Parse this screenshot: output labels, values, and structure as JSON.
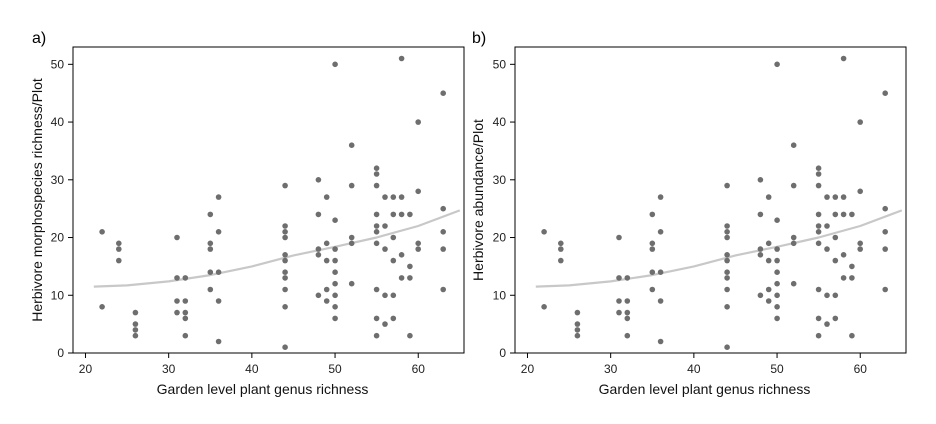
{
  "chart_data": [
    {
      "type": "scatter",
      "panel_label": "a)",
      "xlabel": "Garden level plant genus richness",
      "ylabel": "Herbivore morphospecies richness/Plot",
      "xlim": [
        18.5,
        65.5
      ],
      "ylim": [
        0,
        53
      ],
      "xticks": [
        20,
        30,
        40,
        50,
        60
      ],
      "yticks": [
        0,
        10,
        20,
        30,
        40,
        50
      ],
      "point_color": "#6e6e6e",
      "fit_color": "#c8c8c8",
      "fit_curve": {
        "x": [
          21,
          25,
          30,
          35,
          40,
          45,
          50,
          55,
          60,
          65
        ],
        "y": [
          11.5,
          11.7,
          12.4,
          13.5,
          15.0,
          16.9,
          18.4,
          20.0,
          22.0,
          24.7
        ]
      },
      "points": [
        {
          "x": 22,
          "y": 21
        },
        {
          "x": 22,
          "y": 8
        },
        {
          "x": 24,
          "y": 19
        },
        {
          "x": 24,
          "y": 18
        },
        {
          "x": 24,
          "y": 16
        },
        {
          "x": 26,
          "y": 7
        },
        {
          "x": 26,
          "y": 5
        },
        {
          "x": 26,
          "y": 4
        },
        {
          "x": 26,
          "y": 3
        },
        {
          "x": 31,
          "y": 20
        },
        {
          "x": 31,
          "y": 13
        },
        {
          "x": 31,
          "y": 9
        },
        {
          "x": 31,
          "y": 7
        },
        {
          "x": 32,
          "y": 13
        },
        {
          "x": 32,
          "y": 9
        },
        {
          "x": 32,
          "y": 7
        },
        {
          "x": 32,
          "y": 6
        },
        {
          "x": 32,
          "y": 3
        },
        {
          "x": 35,
          "y": 24
        },
        {
          "x": 35,
          "y": 19
        },
        {
          "x": 35,
          "y": 18
        },
        {
          "x": 35,
          "y": 14
        },
        {
          "x": 35,
          "y": 11
        },
        {
          "x": 36,
          "y": 27
        },
        {
          "x": 36,
          "y": 21
        },
        {
          "x": 36,
          "y": 14
        },
        {
          "x": 36,
          "y": 9
        },
        {
          "x": 36,
          "y": 2
        },
        {
          "x": 44,
          "y": 29
        },
        {
          "x": 44,
          "y": 22
        },
        {
          "x": 44,
          "y": 21
        },
        {
          "x": 44,
          "y": 20
        },
        {
          "x": 44,
          "y": 17
        },
        {
          "x": 44,
          "y": 16
        },
        {
          "x": 44,
          "y": 14
        },
        {
          "x": 44,
          "y": 13
        },
        {
          "x": 44,
          "y": 11
        },
        {
          "x": 44,
          "y": 8
        },
        {
          "x": 44,
          "y": 1
        },
        {
          "x": 48,
          "y": 30
        },
        {
          "x": 48,
          "y": 24
        },
        {
          "x": 48,
          "y": 18
        },
        {
          "x": 48,
          "y": 17
        },
        {
          "x": 48,
          "y": 10
        },
        {
          "x": 49,
          "y": 27
        },
        {
          "x": 49,
          "y": 19
        },
        {
          "x": 49,
          "y": 16
        },
        {
          "x": 49,
          "y": 11
        },
        {
          "x": 49,
          "y": 9
        },
        {
          "x": 50,
          "y": 50
        },
        {
          "x": 50,
          "y": 23
        },
        {
          "x": 50,
          "y": 18
        },
        {
          "x": 50,
          "y": 16
        },
        {
          "x": 50,
          "y": 14
        },
        {
          "x": 50,
          "y": 12
        },
        {
          "x": 50,
          "y": 10
        },
        {
          "x": 50,
          "y": 8
        },
        {
          "x": 50,
          "y": 6
        },
        {
          "x": 52,
          "y": 36
        },
        {
          "x": 52,
          "y": 29
        },
        {
          "x": 52,
          "y": 20
        },
        {
          "x": 52,
          "y": 19
        },
        {
          "x": 52,
          "y": 12
        },
        {
          "x": 55,
          "y": 32
        },
        {
          "x": 55,
          "y": 31
        },
        {
          "x": 55,
          "y": 29
        },
        {
          "x": 55,
          "y": 24
        },
        {
          "x": 55,
          "y": 22
        },
        {
          "x": 55,
          "y": 21
        },
        {
          "x": 55,
          "y": 19
        },
        {
          "x": 55,
          "y": 11
        },
        {
          "x": 55,
          "y": 6
        },
        {
          "x": 55,
          "y": 3
        },
        {
          "x": 56,
          "y": 27
        },
        {
          "x": 56,
          "y": 22
        },
        {
          "x": 56,
          "y": 18
        },
        {
          "x": 56,
          "y": 10
        },
        {
          "x": 56,
          "y": 5
        },
        {
          "x": 57,
          "y": 27
        },
        {
          "x": 57,
          "y": 24
        },
        {
          "x": 57,
          "y": 20
        },
        {
          "x": 57,
          "y": 16
        },
        {
          "x": 57,
          "y": 10
        },
        {
          "x": 57,
          "y": 6
        },
        {
          "x": 58,
          "y": 51
        },
        {
          "x": 58,
          "y": 27
        },
        {
          "x": 58,
          "y": 24
        },
        {
          "x": 58,
          "y": 17
        },
        {
          "x": 58,
          "y": 13
        },
        {
          "x": 59,
          "y": 24
        },
        {
          "x": 59,
          "y": 15
        },
        {
          "x": 59,
          "y": 13
        },
        {
          "x": 59,
          "y": 3
        },
        {
          "x": 60,
          "y": 40
        },
        {
          "x": 60,
          "y": 28
        },
        {
          "x": 60,
          "y": 19
        },
        {
          "x": 60,
          "y": 18
        },
        {
          "x": 63,
          "y": 45
        },
        {
          "x": 63,
          "y": 25
        },
        {
          "x": 63,
          "y": 21
        },
        {
          "x": 63,
          "y": 18
        },
        {
          "x": 63,
          "y": 11
        }
      ]
    },
    {
      "type": "scatter",
      "panel_label": "b)",
      "xlabel": "Garden level plant genus richness",
      "ylabel": "Herbivore abundance/Plot",
      "xlim": [
        18.5,
        65.5
      ],
      "ylim": [
        0,
        53
      ],
      "xticks": [
        20,
        30,
        40,
        50,
        60
      ],
      "yticks": [
        0,
        10,
        20,
        30,
        40,
        50
      ],
      "point_color": "#6e6e6e",
      "fit_color": "#c8c8c8",
      "fit_curve": {
        "x": [
          21,
          25,
          30,
          35,
          40,
          45,
          50,
          55,
          60,
          65
        ],
        "y": [
          11.5,
          11.7,
          12.4,
          13.5,
          15.0,
          16.9,
          18.4,
          20.0,
          22.0,
          24.7
        ]
      },
      "points": [
        {
          "x": 22,
          "y": 21
        },
        {
          "x": 22,
          "y": 8
        },
        {
          "x": 24,
          "y": 19
        },
        {
          "x": 24,
          "y": 18
        },
        {
          "x": 24,
          "y": 16
        },
        {
          "x": 26,
          "y": 7
        },
        {
          "x": 26,
          "y": 5
        },
        {
          "x": 26,
          "y": 4
        },
        {
          "x": 26,
          "y": 3
        },
        {
          "x": 31,
          "y": 20
        },
        {
          "x": 31,
          "y": 13
        },
        {
          "x": 31,
          "y": 9
        },
        {
          "x": 31,
          "y": 7
        },
        {
          "x": 32,
          "y": 13
        },
        {
          "x": 32,
          "y": 9
        },
        {
          "x": 32,
          "y": 7
        },
        {
          "x": 32,
          "y": 6
        },
        {
          "x": 32,
          "y": 3
        },
        {
          "x": 35,
          "y": 24
        },
        {
          "x": 35,
          "y": 19
        },
        {
          "x": 35,
          "y": 18
        },
        {
          "x": 35,
          "y": 14
        },
        {
          "x": 35,
          "y": 11
        },
        {
          "x": 36,
          "y": 27
        },
        {
          "x": 36,
          "y": 21
        },
        {
          "x": 36,
          "y": 14
        },
        {
          "x": 36,
          "y": 9
        },
        {
          "x": 36,
          "y": 2
        },
        {
          "x": 44,
          "y": 29
        },
        {
          "x": 44,
          "y": 22
        },
        {
          "x": 44,
          "y": 21
        },
        {
          "x": 44,
          "y": 20
        },
        {
          "x": 44,
          "y": 17
        },
        {
          "x": 44,
          "y": 16
        },
        {
          "x": 44,
          "y": 14
        },
        {
          "x": 44,
          "y": 13
        },
        {
          "x": 44,
          "y": 11
        },
        {
          "x": 44,
          "y": 8
        },
        {
          "x": 44,
          "y": 1
        },
        {
          "x": 48,
          "y": 30
        },
        {
          "x": 48,
          "y": 24
        },
        {
          "x": 48,
          "y": 18
        },
        {
          "x": 48,
          "y": 17
        },
        {
          "x": 48,
          "y": 10
        },
        {
          "x": 49,
          "y": 27
        },
        {
          "x": 49,
          "y": 19
        },
        {
          "x": 49,
          "y": 16
        },
        {
          "x": 49,
          "y": 11
        },
        {
          "x": 49,
          "y": 9
        },
        {
          "x": 50,
          "y": 50
        },
        {
          "x": 50,
          "y": 23
        },
        {
          "x": 50,
          "y": 18
        },
        {
          "x": 50,
          "y": 16
        },
        {
          "x": 50,
          "y": 14
        },
        {
          "x": 50,
          "y": 12
        },
        {
          "x": 50,
          "y": 10
        },
        {
          "x": 50,
          "y": 8
        },
        {
          "x": 50,
          "y": 6
        },
        {
          "x": 52,
          "y": 36
        },
        {
          "x": 52,
          "y": 29
        },
        {
          "x": 52,
          "y": 20
        },
        {
          "x": 52,
          "y": 19
        },
        {
          "x": 52,
          "y": 12
        },
        {
          "x": 55,
          "y": 32
        },
        {
          "x": 55,
          "y": 31
        },
        {
          "x": 55,
          "y": 29
        },
        {
          "x": 55,
          "y": 24
        },
        {
          "x": 55,
          "y": 22
        },
        {
          "x": 55,
          "y": 21
        },
        {
          "x": 55,
          "y": 19
        },
        {
          "x": 55,
          "y": 11
        },
        {
          "x": 55,
          "y": 6
        },
        {
          "x": 55,
          "y": 3
        },
        {
          "x": 56,
          "y": 27
        },
        {
          "x": 56,
          "y": 22
        },
        {
          "x": 56,
          "y": 18
        },
        {
          "x": 56,
          "y": 10
        },
        {
          "x": 56,
          "y": 5
        },
        {
          "x": 57,
          "y": 27
        },
        {
          "x": 57,
          "y": 24
        },
        {
          "x": 57,
          "y": 20
        },
        {
          "x": 57,
          "y": 16
        },
        {
          "x": 57,
          "y": 10
        },
        {
          "x": 57,
          "y": 6
        },
        {
          "x": 58,
          "y": 51
        },
        {
          "x": 58,
          "y": 27
        },
        {
          "x": 58,
          "y": 24
        },
        {
          "x": 58,
          "y": 17
        },
        {
          "x": 58,
          "y": 13
        },
        {
          "x": 59,
          "y": 24
        },
        {
          "x": 59,
          "y": 15
        },
        {
          "x": 59,
          "y": 13
        },
        {
          "x": 59,
          "y": 3
        },
        {
          "x": 60,
          "y": 40
        },
        {
          "x": 60,
          "y": 28
        },
        {
          "x": 60,
          "y": 19
        },
        {
          "x": 60,
          "y": 18
        },
        {
          "x": 63,
          "y": 45
        },
        {
          "x": 63,
          "y": 25
        },
        {
          "x": 63,
          "y": 21
        },
        {
          "x": 63,
          "y": 18
        },
        {
          "x": 63,
          "y": 11
        }
      ]
    }
  ]
}
